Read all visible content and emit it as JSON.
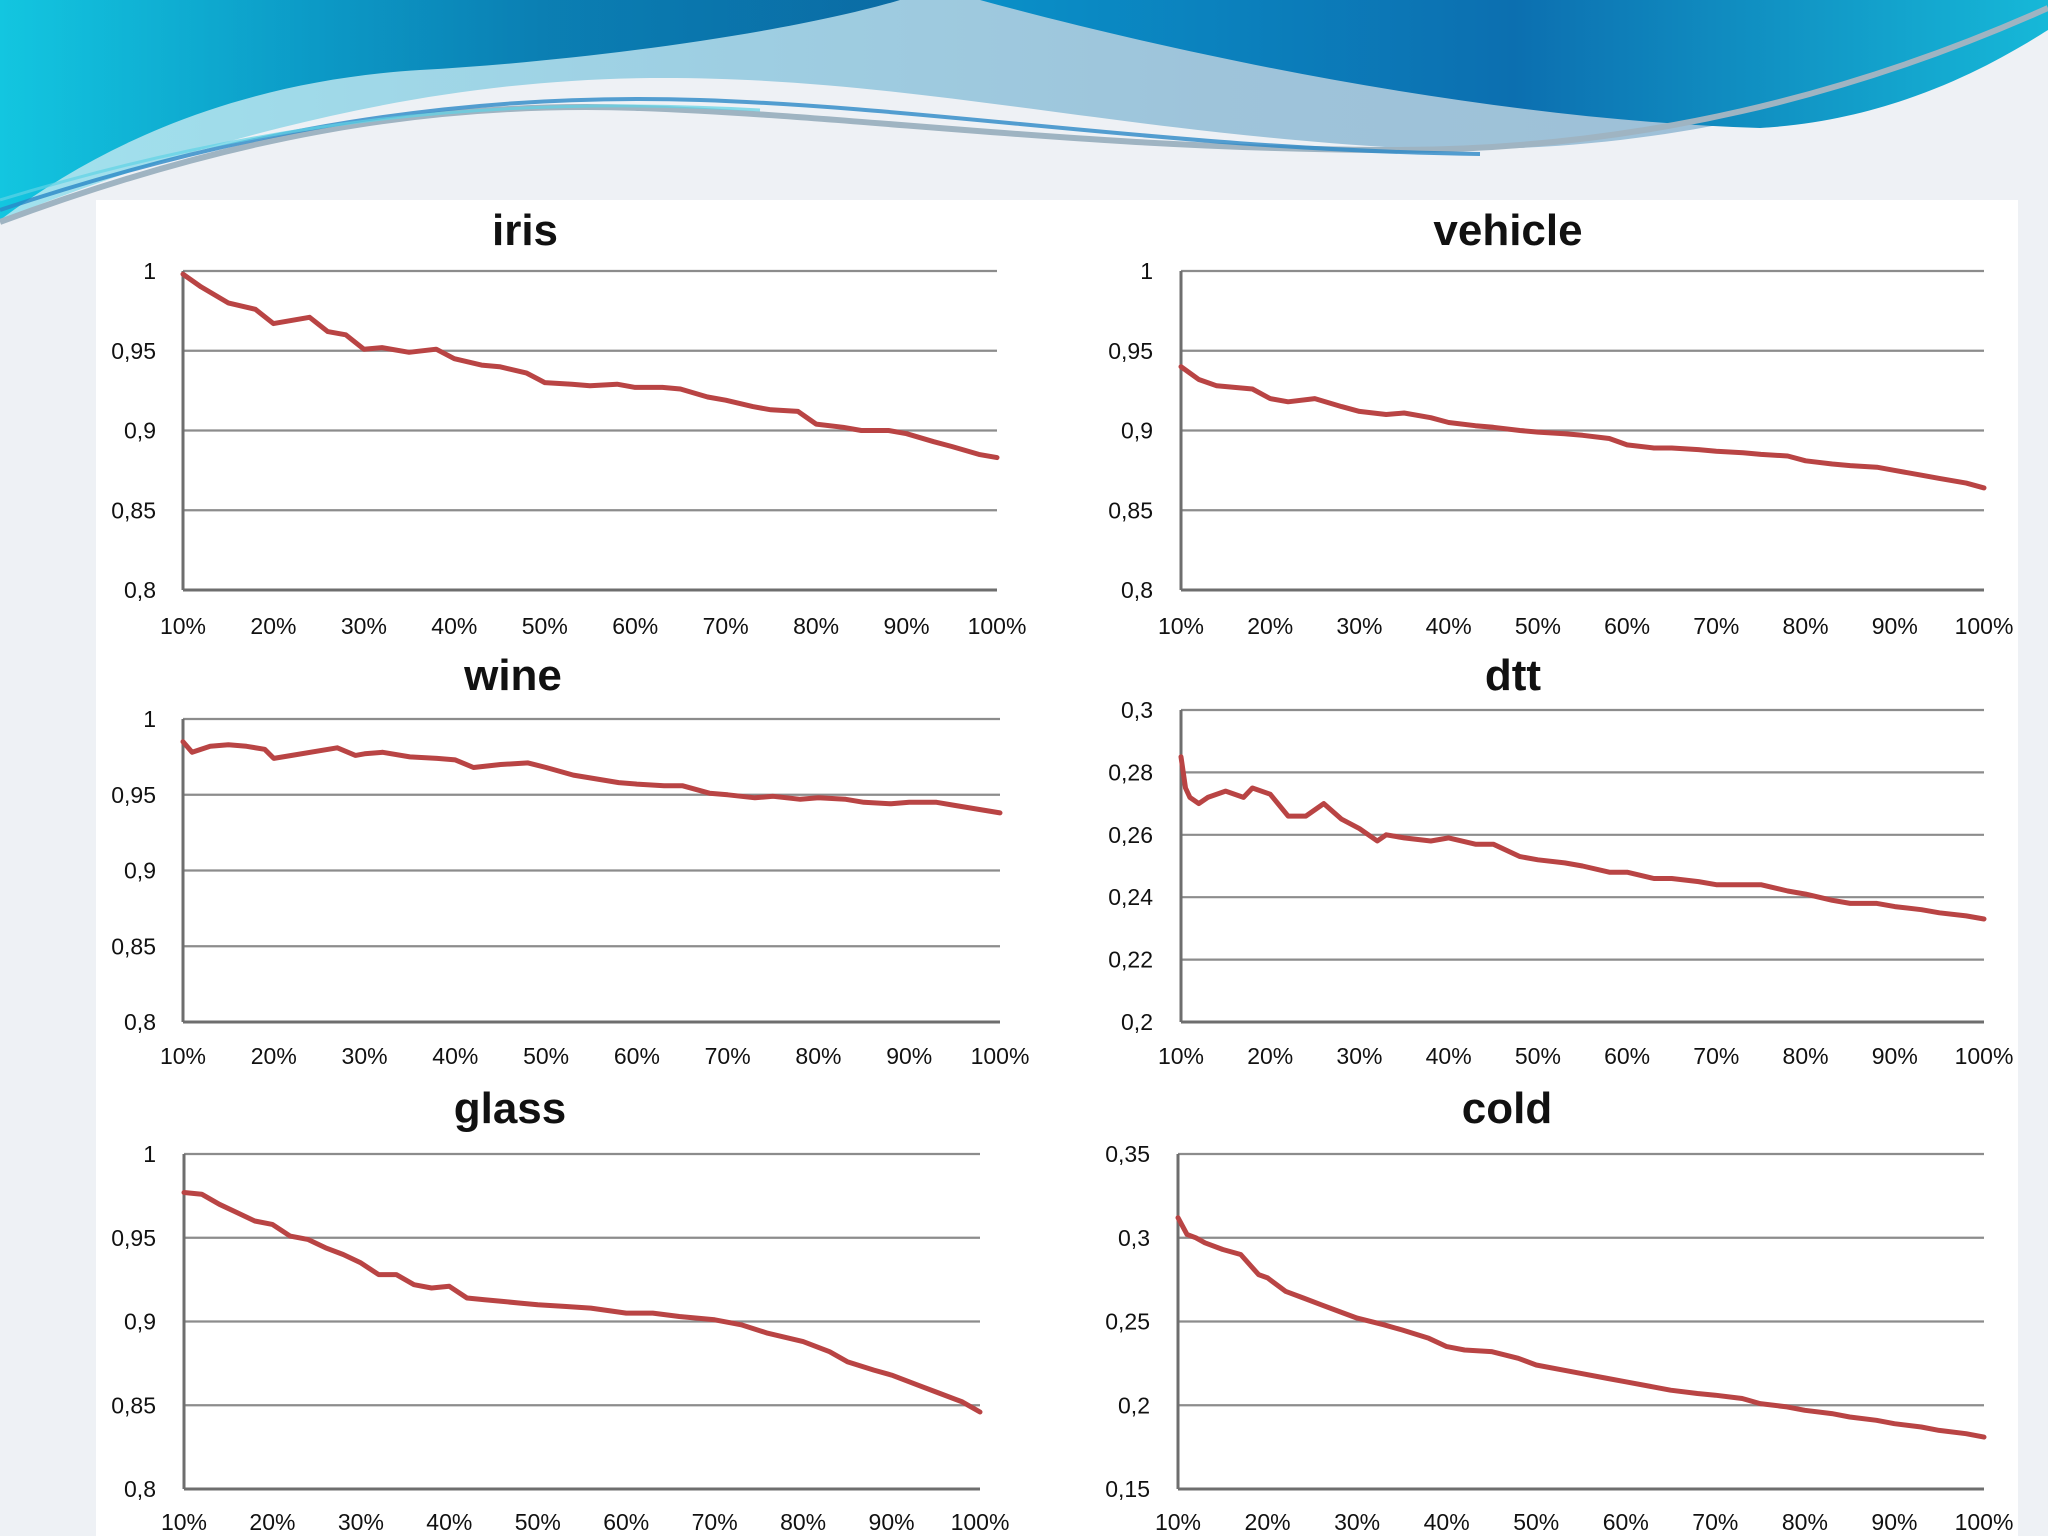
{
  "theme": {
    "series_color": "#b94444",
    "banner_dark": "#0a7ea6",
    "banner_light": "#27c6dd"
  },
  "chart_data": [
    {
      "id": "iris",
      "type": "line",
      "title": "iris",
      "x_ticks": [
        "10%",
        "20%",
        "30%",
        "40%",
        "50%",
        "60%",
        "70%",
        "80%",
        "90%",
        "100%"
      ],
      "y_ticks": [
        "1",
        "0,95",
        "0,9",
        "0,85",
        "0,8"
      ],
      "ylim": [
        0.8,
        1.0
      ],
      "series": [
        {
          "name": "iris",
          "x": [
            10,
            12,
            15,
            18,
            20,
            22,
            24,
            26,
            28,
            30,
            32,
            35,
            38,
            40,
            43,
            45,
            48,
            50,
            53,
            55,
            58,
            60,
            63,
            65,
            68,
            70,
            73,
            75,
            78,
            80,
            83,
            85,
            88,
            90,
            93,
            95,
            98,
            100
          ],
          "values": [
            0.998,
            0.99,
            0.98,
            0.976,
            0.967,
            0.969,
            0.971,
            0.962,
            0.96,
            0.951,
            0.952,
            0.949,
            0.951,
            0.945,
            0.941,
            0.94,
            0.936,
            0.93,
            0.929,
            0.928,
            0.929,
            0.927,
            0.927,
            0.926,
            0.921,
            0.919,
            0.915,
            0.913,
            0.912,
            0.904,
            0.902,
            0.9,
            0.9,
            0.898,
            0.893,
            0.89,
            0.885,
            0.883
          ]
        }
      ]
    },
    {
      "id": "vehicle",
      "type": "line",
      "title": "vehicle",
      "x_ticks": [
        "10%",
        "20%",
        "30%",
        "40%",
        "50%",
        "60%",
        "70%",
        "80%",
        "90%",
        "100%"
      ],
      "y_ticks": [
        "1",
        "0,95",
        "0,9",
        "0,85",
        "0,8"
      ],
      "ylim": [
        0.8,
        1.0
      ],
      "series": [
        {
          "name": "vehicle",
          "x": [
            10,
            12,
            14,
            16,
            18,
            20,
            22,
            25,
            28,
            30,
            33,
            35,
            38,
            40,
            43,
            45,
            48,
            50,
            53,
            55,
            58,
            60,
            63,
            65,
            68,
            70,
            73,
            75,
            78,
            80,
            83,
            85,
            88,
            90,
            93,
            95,
            98,
            100
          ],
          "values": [
            0.94,
            0.932,
            0.928,
            0.927,
            0.926,
            0.92,
            0.918,
            0.92,
            0.915,
            0.912,
            0.91,
            0.911,
            0.908,
            0.905,
            0.903,
            0.902,
            0.9,
            0.899,
            0.898,
            0.897,
            0.895,
            0.891,
            0.889,
            0.889,
            0.888,
            0.887,
            0.886,
            0.885,
            0.884,
            0.881,
            0.879,
            0.878,
            0.877,
            0.875,
            0.872,
            0.87,
            0.867,
            0.864
          ]
        }
      ]
    },
    {
      "id": "wine",
      "type": "line",
      "title": "wine",
      "x_ticks": [
        "10%",
        "20%",
        "30%",
        "40%",
        "50%",
        "60%",
        "70%",
        "80%",
        "90%",
        "100%"
      ],
      "y_ticks": [
        "1",
        "0,95",
        "0,9",
        "0,85",
        "0,8"
      ],
      "ylim": [
        0.8,
        1.0
      ],
      "series": [
        {
          "name": "wine",
          "x": [
            10,
            11,
            13,
            15,
            17,
            19,
            20,
            22,
            25,
            27,
            29,
            30,
            32,
            35,
            38,
            40,
            42,
            45,
            48,
            50,
            53,
            55,
            58,
            60,
            63,
            65,
            68,
            70,
            73,
            75,
            78,
            80,
            83,
            85,
            88,
            90,
            93,
            95,
            98,
            100
          ],
          "values": [
            0.985,
            0.978,
            0.982,
            0.983,
            0.982,
            0.98,
            0.974,
            0.976,
            0.979,
            0.981,
            0.976,
            0.977,
            0.978,
            0.975,
            0.974,
            0.973,
            0.968,
            0.97,
            0.971,
            0.968,
            0.963,
            0.961,
            0.958,
            0.957,
            0.956,
            0.956,
            0.951,
            0.95,
            0.948,
            0.949,
            0.947,
            0.948,
            0.947,
            0.945,
            0.944,
            0.945,
            0.945,
            0.943,
            0.94,
            0.938
          ]
        }
      ]
    },
    {
      "id": "dtt",
      "type": "line",
      "title": "dtt",
      "x_ticks": [
        "10%",
        "20%",
        "30%",
        "40%",
        "50%",
        "60%",
        "70%",
        "80%",
        "90%",
        "100%"
      ],
      "y_ticks": [
        "0,3",
        "0,28",
        "0,26",
        "0,24",
        "0,22",
        "0,2"
      ],
      "ylim": [
        0.2,
        0.3
      ],
      "series": [
        {
          "name": "dtt",
          "x": [
            10,
            10.5,
            11,
            12,
            13,
            15,
            17,
            18,
            20,
            22,
            24,
            26,
            28,
            30,
            32,
            33,
            35,
            38,
            40,
            43,
            45,
            48,
            50,
            53,
            55,
            58,
            60,
            63,
            65,
            68,
            70,
            73,
            75,
            78,
            80,
            83,
            85,
            88,
            90,
            93,
            95,
            98,
            100
          ],
          "values": [
            0.285,
            0.275,
            0.272,
            0.27,
            0.272,
            0.274,
            0.272,
            0.275,
            0.273,
            0.266,
            0.266,
            0.27,
            0.265,
            0.262,
            0.258,
            0.26,
            0.259,
            0.258,
            0.259,
            0.257,
            0.257,
            0.253,
            0.252,
            0.251,
            0.25,
            0.248,
            0.248,
            0.246,
            0.246,
            0.245,
            0.244,
            0.244,
            0.244,
            0.242,
            0.241,
            0.239,
            0.238,
            0.238,
            0.237,
            0.236,
            0.235,
            0.234,
            0.233
          ]
        }
      ]
    },
    {
      "id": "glass",
      "type": "line",
      "title": "glass",
      "x_ticks": [
        "10%",
        "20%",
        "30%",
        "40%",
        "50%",
        "60%",
        "70%",
        "80%",
        "90%",
        "100%"
      ],
      "y_ticks": [
        "1",
        "0,95",
        "0,9",
        "0,85",
        "0,8"
      ],
      "ylim": [
        0.8,
        1.0
      ],
      "series": [
        {
          "name": "glass",
          "x": [
            10,
            12,
            14,
            16,
            18,
            20,
            22,
            24,
            26,
            28,
            30,
            32,
            34,
            36,
            38,
            40,
            42,
            44,
            46,
            48,
            50,
            53,
            56,
            60,
            63,
            66,
            70,
            73,
            76,
            80,
            83,
            85,
            88,
            90,
            93,
            95,
            98,
            100
          ],
          "values": [
            0.977,
            0.976,
            0.97,
            0.965,
            0.96,
            0.958,
            0.951,
            0.949,
            0.944,
            0.94,
            0.935,
            0.928,
            0.928,
            0.922,
            0.92,
            0.921,
            0.914,
            0.913,
            0.912,
            0.911,
            0.91,
            0.909,
            0.908,
            0.905,
            0.905,
            0.903,
            0.901,
            0.898,
            0.893,
            0.888,
            0.882,
            0.876,
            0.871,
            0.868,
            0.862,
            0.858,
            0.852,
            0.846
          ]
        }
      ]
    },
    {
      "id": "cold",
      "type": "line",
      "title": "cold",
      "x_ticks": [
        "10%",
        "20%",
        "30%",
        "40%",
        "50%",
        "60%",
        "70%",
        "80%",
        "90%",
        "100%"
      ],
      "y_ticks": [
        "0,35",
        "0,3",
        "0,25",
        "0,2",
        "0,15"
      ],
      "ylim": [
        0.15,
        0.35
      ],
      "series": [
        {
          "name": "cold",
          "x": [
            10,
            11,
            12,
            13,
            15,
            17,
            18,
            19,
            20,
            22,
            24,
            26,
            28,
            30,
            33,
            35,
            38,
            40,
            42,
            45,
            48,
            50,
            53,
            55,
            58,
            60,
            63,
            65,
            68,
            70,
            73,
            75,
            78,
            80,
            83,
            85,
            88,
            90,
            93,
            95,
            98,
            100
          ],
          "values": [
            0.312,
            0.302,
            0.3,
            0.297,
            0.293,
            0.29,
            0.284,
            0.278,
            0.276,
            0.268,
            0.264,
            0.26,
            0.256,
            0.252,
            0.248,
            0.245,
            0.24,
            0.235,
            0.233,
            0.232,
            0.228,
            0.224,
            0.221,
            0.219,
            0.216,
            0.214,
            0.211,
            0.209,
            0.207,
            0.206,
            0.204,
            0.201,
            0.199,
            0.197,
            0.195,
            0.193,
            0.191,
            0.189,
            0.187,
            0.185,
            0.183,
            0.181
          ]
        }
      ]
    }
  ]
}
